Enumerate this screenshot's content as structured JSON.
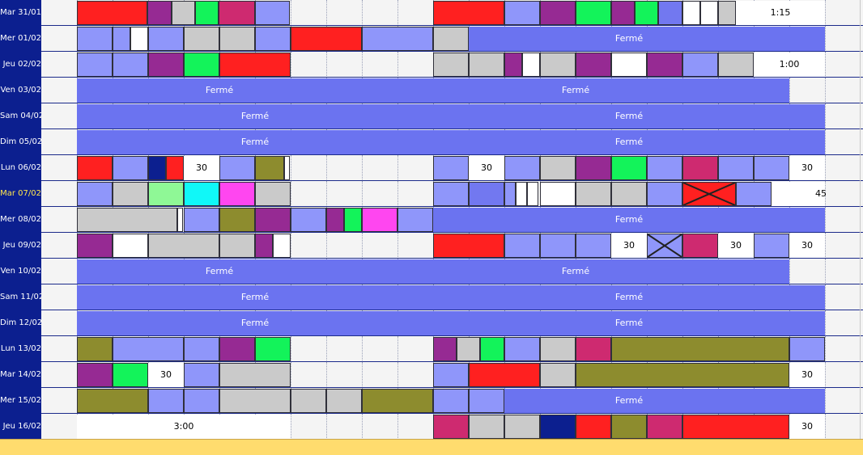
{
  "colors": {
    "r": "#ff2020",
    "b": "#8f96fa",
    "p": "#962a93",
    "g": "#cacaca",
    "n": "#13f35a",
    "m": "#ce2a70",
    "w": "#ffffff",
    "o": "#8d8c2e",
    "d": "#0c1f8f",
    "l": "#8ff896",
    "c": "#10f8f8",
    "k": "#ff46f0",
    "v": "#7278f0",
    "closed_band": "#6b73f0",
    "date_bg": "#0c1f8f",
    "date_text": "#ffffff",
    "date_highlight": "#ffe64d",
    "footer": "#ffdc6e"
  },
  "closed_label": "Fermé",
  "rows": [
    {
      "date": "Mar 31/01",
      "label_date": "Mar 31/01",
      "blocks": [
        [
          95,
          182,
          "r"
        ],
        [
          182,
          212,
          "p"
        ],
        [
          212,
          241,
          "g"
        ],
        [
          241,
          270,
          "n"
        ],
        [
          270,
          315,
          "m"
        ],
        [
          315,
          358,
          "b"
        ],
        [
          535,
          623,
          "r"
        ],
        [
          623,
          667,
          "b"
        ],
        [
          667,
          711,
          "p"
        ],
        [
          711,
          755,
          "n"
        ],
        [
          755,
          784,
          "p"
        ],
        [
          784,
          813,
          "n"
        ],
        [
          813,
          843,
          "v"
        ],
        [
          843,
          865,
          "w"
        ],
        [
          865,
          887,
          "w"
        ],
        [
          887,
          909,
          "g"
        ]
      ],
      "whites": [
        [
          909,
          1019
        ]
      ],
      "labels": [
        {
          "x": 964,
          "text": "1:15"
        }
      ],
      "bands": []
    },
    {
      "date": "Mer 01/02",
      "blocks": [
        [
          95,
          139,
          "b"
        ],
        [
          139,
          161,
          "b"
        ],
        [
          161,
          183,
          "w"
        ],
        [
          183,
          227,
          "b"
        ],
        [
          227,
          271,
          "g"
        ],
        [
          271,
          315,
          "g"
        ],
        [
          315,
          359,
          "b"
        ],
        [
          359,
          447,
          "r"
        ],
        [
          447,
          535,
          "b"
        ],
        [
          535,
          579,
          "g"
        ]
      ],
      "whites": [],
      "labels": [],
      "bands": [
        {
          "from": 579,
          "to": 1019,
          "label_x": 777
        }
      ]
    },
    {
      "date": "Jeu 02/02",
      "blocks": [
        [
          95,
          139,
          "b"
        ],
        [
          139,
          183,
          "b"
        ],
        [
          183,
          227,
          "p"
        ],
        [
          227,
          271,
          "n"
        ],
        [
          271,
          359,
          "r"
        ],
        [
          535,
          579,
          "g"
        ],
        [
          579,
          623,
          "g"
        ],
        [
          623,
          645,
          "p"
        ],
        [
          645,
          667,
          "w"
        ],
        [
          667,
          711,
          "g"
        ],
        [
          711,
          755,
          "p"
        ],
        [
          755,
          799,
          "w"
        ],
        [
          799,
          843,
          "p"
        ],
        [
          843,
          887,
          "b"
        ],
        [
          887,
          931,
          "g"
        ]
      ],
      "whites": [
        [
          931,
          1019
        ]
      ],
      "labels": [
        {
          "x": 975,
          "text": "1:00"
        }
      ],
      "bands": []
    },
    {
      "date": "Ven 03/02",
      "blocks": [],
      "whites": [],
      "labels": [],
      "bands": [
        {
          "from": 95,
          "to": 975,
          "label_x": 271
        },
        {
          "from": 95,
          "to": 975,
          "label_x": 711
        }
      ]
    },
    {
      "date": "Sam 04/02",
      "blocks": [],
      "whites": [],
      "labels": [],
      "bands": [
        {
          "from": 95,
          "to": 1019,
          "label_x": 315
        },
        {
          "from": 95,
          "to": 1019,
          "label_x": 777
        }
      ]
    },
    {
      "date": "Dim 05/02",
      "blocks": [],
      "whites": [],
      "labels": [],
      "bands": [
        {
          "from": 95,
          "to": 1019,
          "label_x": 315
        },
        {
          "from": 95,
          "to": 1019,
          "label_x": 777
        }
      ]
    },
    {
      "date": "Lun 06/02",
      "blocks": [
        [
          95,
          139,
          "r"
        ],
        [
          139,
          183,
          "b"
        ],
        [
          183,
          205,
          "d"
        ],
        [
          205,
          227,
          "r"
        ],
        [
          271,
          315,
          "b"
        ],
        [
          315,
          351,
          "o"
        ],
        [
          351,
          358,
          "w"
        ],
        [
          535,
          579,
          "b"
        ],
        [
          623,
          667,
          "b"
        ],
        [
          667,
          711,
          "g"
        ],
        [
          711,
          755,
          "p"
        ],
        [
          755,
          799,
          "n"
        ],
        [
          799,
          843,
          "b"
        ],
        [
          843,
          887,
          "m"
        ],
        [
          887,
          931,
          "b"
        ],
        [
          931,
          975,
          "b"
        ]
      ],
      "whites": [
        [
          227,
          271
        ],
        [
          579,
          623
        ],
        [
          975,
          1019
        ]
      ],
      "labels": [
        {
          "x": 249,
          "text": "30"
        },
        {
          "x": 601,
          "text": "30"
        },
        {
          "x": 997,
          "text": "30"
        }
      ],
      "bands": []
    },
    {
      "date": "Mar 07/02",
      "highlight": true,
      "blocks": [
        [
          95,
          139,
          "b"
        ],
        [
          139,
          183,
          "g"
        ],
        [
          183,
          227,
          "l"
        ],
        [
          227,
          271,
          "c"
        ],
        [
          271,
          315,
          "k"
        ],
        [
          315,
          359,
          "g"
        ],
        [
          535,
          579,
          "b"
        ],
        [
          579,
          623,
          "v"
        ],
        [
          623,
          637,
          "b"
        ],
        [
          637,
          651,
          "w"
        ],
        [
          651,
          665,
          "w"
        ],
        [
          667,
          711,
          "w"
        ],
        [
          711,
          755,
          "g"
        ],
        [
          755,
          799,
          "g"
        ],
        [
          799,
          843,
          "b"
        ],
        [
          843,
          909,
          "r",
          "x"
        ],
        [
          909,
          953,
          "b"
        ]
      ],
      "whites": [
        [
          953,
          1019
        ]
      ],
      "labels": [
        {
          "x": 1014,
          "text": "45"
        }
      ],
      "bands": []
    },
    {
      "date": "Mer 08/02",
      "blocks": [
        [
          95,
          219,
          "g"
        ],
        [
          219,
          226,
          "w"
        ],
        [
          227,
          271,
          "b"
        ],
        [
          271,
          315,
          "o"
        ],
        [
          315,
          359,
          "p"
        ],
        [
          359,
          403,
          "b"
        ],
        [
          403,
          425,
          "p"
        ],
        [
          425,
          447,
          "n"
        ],
        [
          447,
          491,
          "k"
        ],
        [
          491,
          535,
          "b"
        ]
      ],
      "whites": [],
      "labels": [],
      "bands": [
        {
          "from": 535,
          "to": 1019,
          "label_x": 777
        }
      ]
    },
    {
      "date": "Jeu 09/02",
      "blocks": [
        [
          95,
          139,
          "p"
        ],
        [
          139,
          183,
          "w"
        ],
        [
          183,
          271,
          "g"
        ],
        [
          271,
          315,
          "g"
        ],
        [
          315,
          337,
          "p"
        ],
        [
          337,
          359,
          "w"
        ],
        [
          535,
          623,
          "r"
        ],
        [
          623,
          667,
          "b"
        ],
        [
          667,
          711,
          "b"
        ],
        [
          711,
          755,
          "b"
        ],
        [
          799,
          843,
          "b",
          "x"
        ],
        [
          843,
          887,
          "m"
        ],
        [
          931,
          975,
          "b"
        ]
      ],
      "whites": [
        [
          755,
          799
        ],
        [
          887,
          931
        ],
        [
          975,
          1019
        ]
      ],
      "labels": [
        {
          "x": 777,
          "text": "30"
        },
        {
          "x": 909,
          "text": "30"
        },
        {
          "x": 997,
          "text": "30"
        }
      ],
      "bands": []
    },
    {
      "date": "Ven 10/02",
      "blocks": [],
      "whites": [],
      "labels": [],
      "bands": [
        {
          "from": 95,
          "to": 975,
          "label_x": 271
        },
        {
          "from": 95,
          "to": 975,
          "label_x": 711
        }
      ]
    },
    {
      "date": "Sam 11/02",
      "blocks": [],
      "whites": [],
      "labels": [],
      "bands": [
        {
          "from": 95,
          "to": 1019,
          "label_x": 315
        },
        {
          "from": 95,
          "to": 1019,
          "label_x": 777
        }
      ]
    },
    {
      "date": "Dim 12/02",
      "blocks": [],
      "whites": [],
      "labels": [],
      "bands": [
        {
          "from": 95,
          "to": 1019,
          "label_x": 315
        },
        {
          "from": 95,
          "to": 1019,
          "label_x": 777
        }
      ]
    },
    {
      "date": "Lun 13/02",
      "blocks": [
        [
          95,
          139,
          "o"
        ],
        [
          139,
          227,
          "b"
        ],
        [
          227,
          271,
          "b"
        ],
        [
          271,
          315,
          "p"
        ],
        [
          315,
          359,
          "n"
        ],
        [
          535,
          564,
          "p"
        ],
        [
          564,
          593,
          "g"
        ],
        [
          593,
          623,
          "n"
        ],
        [
          623,
          667,
          "b"
        ],
        [
          667,
          711,
          "g"
        ],
        [
          711,
          755,
          "m"
        ],
        [
          755,
          975,
          "o"
        ],
        [
          975,
          1019,
          "b"
        ]
      ],
      "whites": [],
      "labels": [],
      "bands": []
    },
    {
      "date": "Mar 14/02",
      "blocks": [
        [
          95,
          139,
          "p"
        ],
        [
          139,
          183,
          "n"
        ],
        [
          227,
          271,
          "b"
        ],
        [
          271,
          359,
          "g"
        ],
        [
          535,
          579,
          "b"
        ],
        [
          579,
          667,
          "r"
        ],
        [
          667,
          711,
          "g"
        ],
        [
          711,
          975,
          "o"
        ]
      ],
      "whites": [
        [
          183,
          227
        ],
        [
          975,
          1019
        ]
      ],
      "labels": [
        {
          "x": 205,
          "text": "30"
        },
        {
          "x": 997,
          "text": "30"
        }
      ],
      "bands": []
    },
    {
      "date": "Mer 15/02",
      "blocks": [
        [
          95,
          183,
          "o"
        ],
        [
          183,
          227,
          "b"
        ],
        [
          227,
          271,
          "b"
        ],
        [
          271,
          359,
          "g"
        ],
        [
          359,
          403,
          "g"
        ],
        [
          403,
          447,
          "g"
        ],
        [
          447,
          535,
          "o"
        ],
        [
          535,
          579,
          "b"
        ],
        [
          579,
          623,
          "b"
        ]
      ],
      "whites": [],
      "labels": [],
      "bands": [
        {
          "from": 623,
          "to": 1019,
          "label_x": 777
        }
      ]
    },
    {
      "date": "Jeu 16/02",
      "blocks": [
        [
          535,
          579,
          "m"
        ],
        [
          579,
          623,
          "g"
        ],
        [
          623,
          667,
          "g"
        ],
        [
          667,
          711,
          "d"
        ],
        [
          711,
          755,
          "r"
        ],
        [
          755,
          799,
          "o"
        ],
        [
          799,
          843,
          "m"
        ],
        [
          843,
          975,
          "r"
        ]
      ],
      "whites": [
        [
          975,
          1019
        ]
      ],
      "labels": [
        {
          "x": 997,
          "text": "30"
        }
      ],
      "bands": [],
      "white_bands": [
        {
          "from": 95,
          "to": 359,
          "text": "3:00",
          "label_x": 227
        }
      ]
    }
  ]
}
